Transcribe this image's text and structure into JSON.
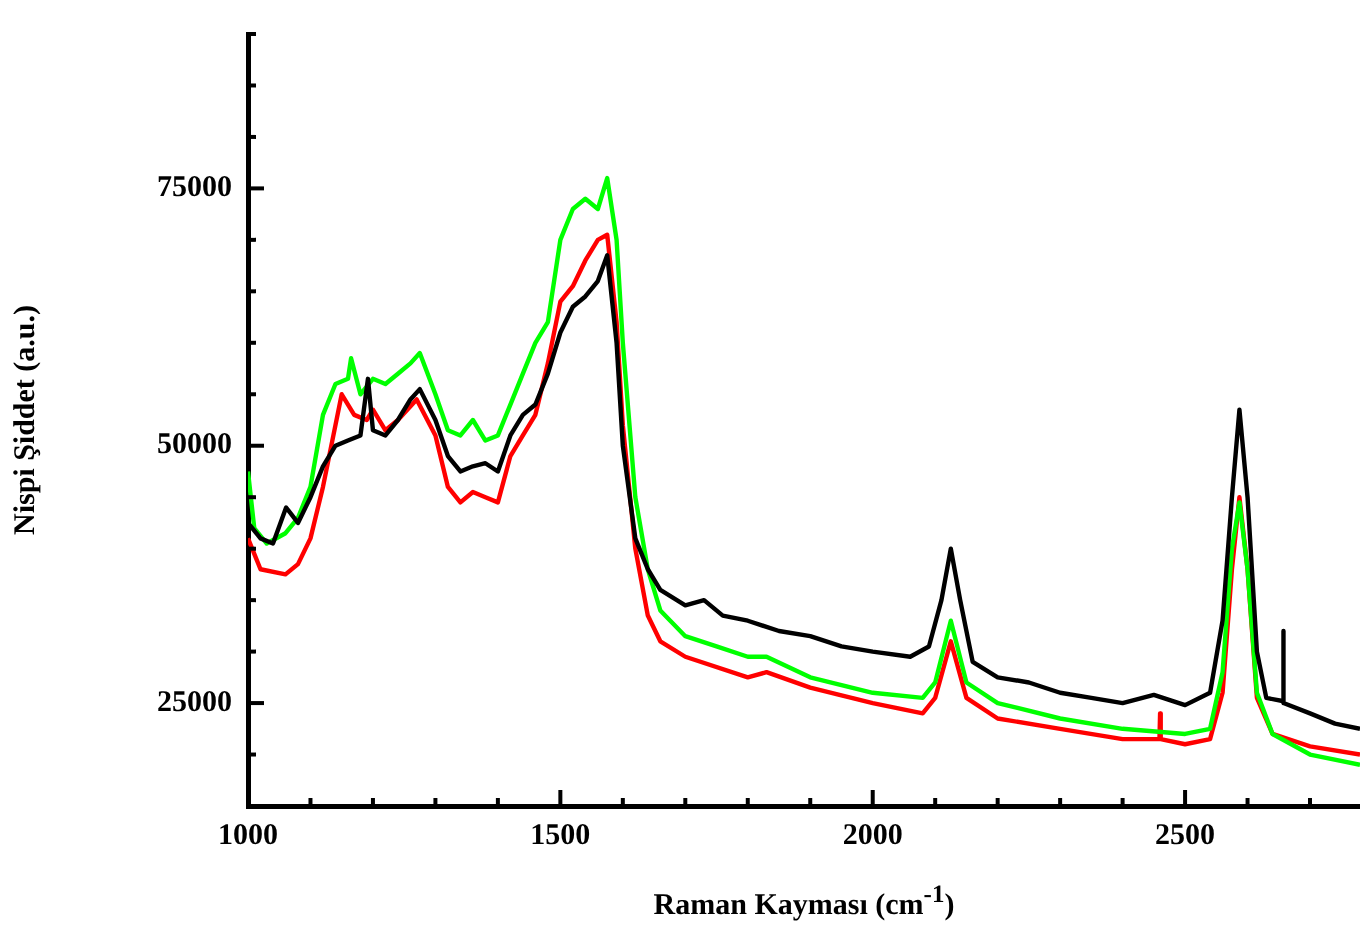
{
  "chart_data": {
    "type": "line",
    "xlabel": "Raman Kayması (cm$^{-1}$)",
    "ylabel": "Nispi Şiddet (a.u.)",
    "xlim": [
      1000,
      2780
    ],
    "ylim": [
      15000,
      90000
    ],
    "xticks": [
      1000,
      {
        "value": 1100,
        "label": null
      },
      {
        "value": 1200,
        "label": null
      },
      {
        "value": 1300,
        "label": null
      },
      {
        "value": 1400,
        "label": null
      },
      1500,
      {
        "value": 1600,
        "label": null
      },
      {
        "value": 1700,
        "label": null
      },
      {
        "value": 1800,
        "label": null
      },
      {
        "value": 1900,
        "label": null
      },
      2000,
      {
        "value": 2100,
        "label": null
      },
      {
        "value": 2200,
        "label": null
      },
      {
        "value": 2300,
        "label": null
      },
      {
        "value": 2400,
        "label": null
      },
      2500,
      {
        "value": 2600,
        "label": null
      },
      {
        "value": 2700,
        "label": null
      }
    ],
    "yticks": [
      {
        "value": 15000,
        "label": null
      },
      {
        "value": 20000,
        "label": null
      },
      25000,
      {
        "value": 30000,
        "label": null
      },
      {
        "value": 35000,
        "label": null
      },
      {
        "value": 40000,
        "label": null
      },
      {
        "value": 45000,
        "label": null
      },
      50000,
      {
        "value": 55000,
        "label": null
      },
      {
        "value": 60000,
        "label": null
      },
      {
        "value": 65000,
        "label": null
      },
      {
        "value": 70000,
        "label": null
      },
      75000,
      {
        "value": 80000,
        "label": null
      },
      {
        "value": 85000,
        "label": null
      },
      {
        "value": 90000,
        "label": null
      }
    ],
    "grid": false,
    "legend": false,
    "marker": "none",
    "line_style": "solid",
    "series": [
      {
        "color": "#000000",
        "x": [
          1000,
          1020,
          1040,
          1061,
          1080,
          1100,
          1120,
          1140,
          1160,
          1180,
          1192,
          1200,
          1220,
          1240,
          1260,
          1275,
          1300,
          1320,
          1340,
          1360,
          1380,
          1400,
          1420,
          1440,
          1460,
          1480,
          1500,
          1520,
          1540,
          1560,
          1575,
          1590,
          1600,
          1620,
          1640,
          1660,
          1700,
          1730,
          1760,
          1800,
          1850,
          1900,
          1950,
          2000,
          2060,
          2090,
          2110,
          2125,
          2140,
          2160,
          2200,
          2250,
          2300,
          2350,
          2400,
          2450,
          2500,
          2540,
          2560,
          2575,
          2587,
          2600,
          2615,
          2630,
          2656,
          2657,
          2658,
          2700,
          2740,
          2780
        ],
        "values": [
          42500,
          41000,
          40500,
          44000,
          42500,
          45000,
          48000,
          50000,
          50500,
          51000,
          56500,
          51500,
          51000,
          52500,
          54500,
          55500,
          52500,
          49000,
          47500,
          48000,
          48300,
          47500,
          51000,
          53000,
          54000,
          57000,
          61000,
          63500,
          64500,
          66000,
          68500,
          60000,
          50000,
          41000,
          38000,
          36000,
          34500,
          35000,
          33500,
          33000,
          32000,
          31500,
          30500,
          30000,
          29500,
          30500,
          35000,
          40000,
          35000,
          29000,
          27500,
          27000,
          26000,
          25500,
          25000,
          25800,
          24800,
          26000,
          33000,
          45000,
          53500,
          45000,
          30000,
          25500,
          25200,
          32000,
          25000,
          24000,
          23000,
          22500
        ]
      },
      {
        "color": "#00ff00",
        "x": [
          1000,
          1010,
          1030,
          1060,
          1080,
          1100,
          1120,
          1140,
          1160,
          1165,
          1180,
          1200,
          1220,
          1240,
          1260,
          1275,
          1300,
          1320,
          1340,
          1360,
          1380,
          1400,
          1420,
          1440,
          1460,
          1480,
          1500,
          1520,
          1540,
          1560,
          1575,
          1590,
          1600,
          1620,
          1640,
          1660,
          1700,
          1750,
          1800,
          1830,
          1900,
          2000,
          2080,
          2100,
          2125,
          2150,
          2200,
          2300,
          2400,
          2500,
          2540,
          2560,
          2575,
          2587,
          2600,
          2615,
          2640,
          2700,
          2780
        ],
        "values": [
          47500,
          42000,
          40500,
          41500,
          43000,
          46000,
          53000,
          56000,
          56500,
          58500,
          55000,
          56500,
          56000,
          57000,
          58000,
          59000,
          55000,
          51500,
          51000,
          52500,
          50500,
          51000,
          54000,
          57000,
          60000,
          62000,
          70000,
          73000,
          74000,
          73000,
          76000,
          70000,
          60000,
          45000,
          38000,
          34000,
          31500,
          30500,
          29500,
          29500,
          27500,
          26000,
          25500,
          27000,
          33000,
          27000,
          25000,
          23500,
          22500,
          22000,
          22500,
          28000,
          40000,
          44500,
          38000,
          26000,
          22000,
          20000,
          19000
        ]
      },
      {
        "color": "#ff0000",
        "x": [
          1000,
          1020,
          1060,
          1080,
          1100,
          1120,
          1140,
          1150,
          1170,
          1190,
          1200,
          1220,
          1240,
          1270,
          1300,
          1320,
          1340,
          1360,
          1380,
          1400,
          1420,
          1440,
          1460,
          1480,
          1500,
          1520,
          1540,
          1560,
          1575,
          1590,
          1600,
          1620,
          1640,
          1660,
          1700,
          1800,
          1830,
          1900,
          2000,
          2080,
          2100,
          2125,
          2150,
          2200,
          2300,
          2400,
          2459,
          2460,
          2461,
          2500,
          2540,
          2560,
          2575,
          2587,
          2600,
          2615,
          2640,
          2700,
          2780
        ],
        "values": [
          41000,
          38000,
          37500,
          38500,
          41000,
          46000,
          52000,
          55000,
          53000,
          52500,
          53500,
          51500,
          52500,
          54500,
          51000,
          46000,
          44500,
          45500,
          45000,
          44500,
          49000,
          51000,
          53000,
          58000,
          64000,
          65500,
          68000,
          70000,
          70500,
          62000,
          52000,
          40000,
          33500,
          31000,
          29500,
          27500,
          28000,
          26500,
          25000,
          24000,
          25500,
          31000,
          25500,
          23500,
          22500,
          21500,
          21500,
          24000,
          21500,
          21000,
          21500,
          26000,
          38000,
          45000,
          38000,
          25500,
          22000,
          20800,
          20000
        ]
      }
    ]
  }
}
